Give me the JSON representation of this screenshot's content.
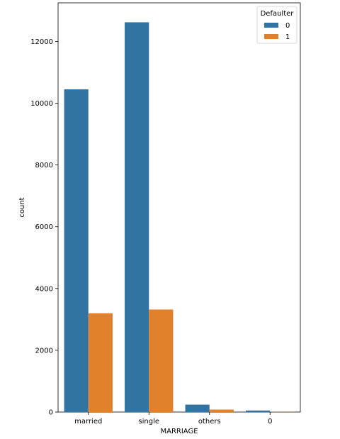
{
  "chart_data": {
    "type": "bar",
    "categories": [
      "married",
      "single",
      "others",
      "0"
    ],
    "series": [
      {
        "name": "0",
        "values": [
          10450,
          12620,
          240,
          50
        ],
        "color": "#3274a1"
      },
      {
        "name": "1",
        "values": [
          3200,
          3320,
          80,
          5
        ],
        "color": "#e1812c"
      }
    ],
    "xlabel": "MARRIAGE",
    "ylabel": "count",
    "ylim": [
      0,
      13250
    ],
    "yticks": [
      0,
      2000,
      4000,
      6000,
      8000,
      10000,
      12000
    ],
    "grid": false,
    "legend": {
      "title": "Defaulter",
      "placement": "top-right"
    }
  }
}
